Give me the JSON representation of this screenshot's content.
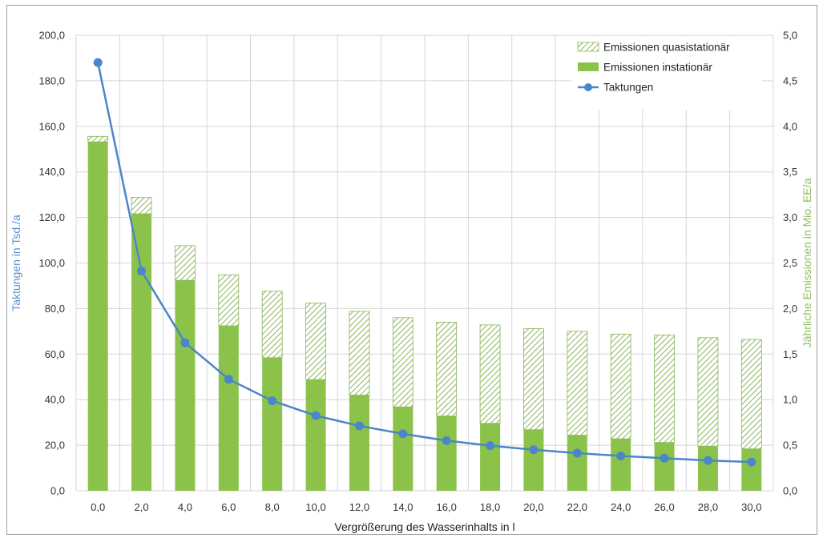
{
  "chart_data": {
    "type": "bar",
    "title": "",
    "xlabel": "Vergrößerung des Wasserinhalts in l",
    "ylabel_left": "Taktungen in Tsd./a",
    "ylabel_right": "Jährliche Emissionen in Mio. EE/a",
    "categories": [
      "0,0",
      "2,0",
      "4,0",
      "6,0",
      "8,0",
      "10,0",
      "12,0",
      "14,0",
      "16,0",
      "18,0",
      "20,0",
      "22,0",
      "24,0",
      "26,0",
      "28,0",
      "30,0"
    ],
    "y_left_ticks": [
      "0,0",
      "20,0",
      "40,0",
      "60,0",
      "80,0",
      "100,0",
      "120,0",
      "140,0",
      "160,0",
      "180,0",
      "200,0"
    ],
    "y_right_ticks": [
      "0,0",
      "0,5",
      "1,0",
      "1,5",
      "2,0",
      "2,5",
      "3,0",
      "3,5",
      "4,0",
      "4,5",
      "5,0"
    ],
    "ylim_left": [
      0,
      200
    ],
    "ylim_right": [
      0,
      5
    ],
    "grid": true,
    "legend_position": "top-right",
    "series": [
      {
        "name": "Emissionen quasistationär",
        "kind": "stacked-bar",
        "axis": "right",
        "color": "#8ab55a",
        "pattern": "hatch",
        "values": [
          0.06,
          0.18,
          0.38,
          0.56,
          0.73,
          0.84,
          0.92,
          0.98,
          1.03,
          1.08,
          1.11,
          1.14,
          1.15,
          1.18,
          1.19,
          1.2
        ]
      },
      {
        "name": "Emissionen instationär",
        "kind": "stacked-bar",
        "axis": "right",
        "color": "#8bc34a",
        "values": [
          3.83,
          3.04,
          2.31,
          1.81,
          1.46,
          1.22,
          1.05,
          0.92,
          0.82,
          0.74,
          0.67,
          0.61,
          0.57,
          0.53,
          0.49,
          0.46
        ]
      },
      {
        "name": "Taktungen",
        "kind": "line",
        "axis": "left",
        "color": "#4a86c8",
        "values": [
          188.0,
          96.5,
          65.0,
          49.0,
          39.5,
          33.0,
          28.5,
          25.0,
          22.0,
          19.8,
          18.0,
          16.5,
          15.3,
          14.3,
          13.3,
          12.6
        ]
      }
    ]
  }
}
